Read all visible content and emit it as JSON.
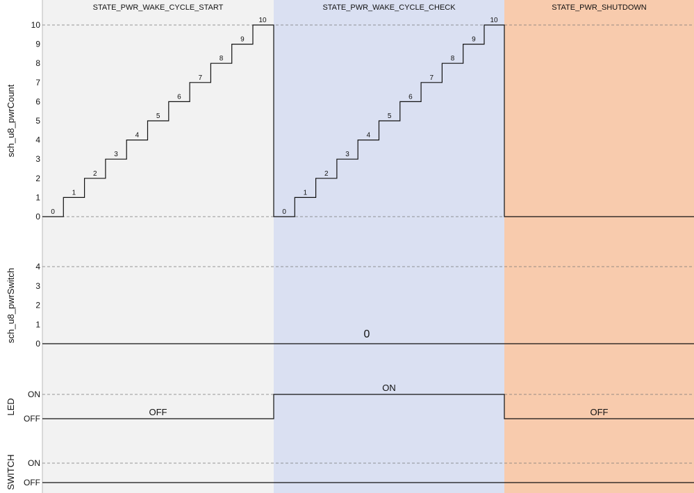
{
  "states": [
    {
      "name": "STATE_PWR_WAKE_CYCLE_START",
      "color": "#f2f2f2"
    },
    {
      "name": "STATE_PWR_WAKE_CYCLE_CHECK",
      "color": "#dae0f2"
    },
    {
      "name": "STATE_PWR_SHUTDOWN",
      "color": "#f8cbad"
    }
  ],
  "tracks": [
    {
      "id": "pwr-count",
      "label": "sch_u8_pwrCount",
      "ticks": [
        "0",
        "1",
        "2",
        "3",
        "4",
        "5",
        "6",
        "7",
        "8",
        "9",
        "10"
      ],
      "gridlines": [
        "0",
        "10"
      ],
      "segments": [
        {
          "state": 0,
          "values": [
            0,
            1,
            2,
            3,
            4,
            5,
            6,
            7,
            8,
            9,
            10
          ],
          "labels": [
            "0",
            "1",
            "2",
            "3",
            "4",
            "5",
            "6",
            "7",
            "8",
            "9",
            "10"
          ]
        },
        {
          "state": 1,
          "values": [
            0,
            1,
            2,
            3,
            4,
            5,
            6,
            7,
            8,
            9,
            10
          ],
          "labels": [
            "0",
            "1",
            "2",
            "3",
            "4",
            "5",
            "6",
            "7",
            "8",
            "9",
            "10"
          ]
        },
        {
          "state": 2,
          "values": [
            0
          ],
          "labels": []
        }
      ]
    },
    {
      "id": "pwr-switch",
      "label": "sch_u8_pwrSwitch",
      "ticks": [
        "0",
        "1",
        "2",
        "3",
        "4"
      ],
      "gridlines": [
        "4"
      ],
      "value": 0,
      "value_label": "0"
    },
    {
      "id": "led",
      "label": "LED",
      "ticks": [
        "OFF",
        "ON"
      ],
      "gridlines": [
        "ON"
      ],
      "levels": [
        "OFF",
        "ON",
        "OFF"
      ],
      "level_labels": [
        "OFF",
        "ON",
        "OFF"
      ]
    },
    {
      "id": "switch",
      "label": "SWITCH",
      "ticks": [
        "OFF",
        "ON"
      ],
      "gridlines": [
        "ON",
        "OFF"
      ],
      "level": "OFF"
    }
  ]
}
